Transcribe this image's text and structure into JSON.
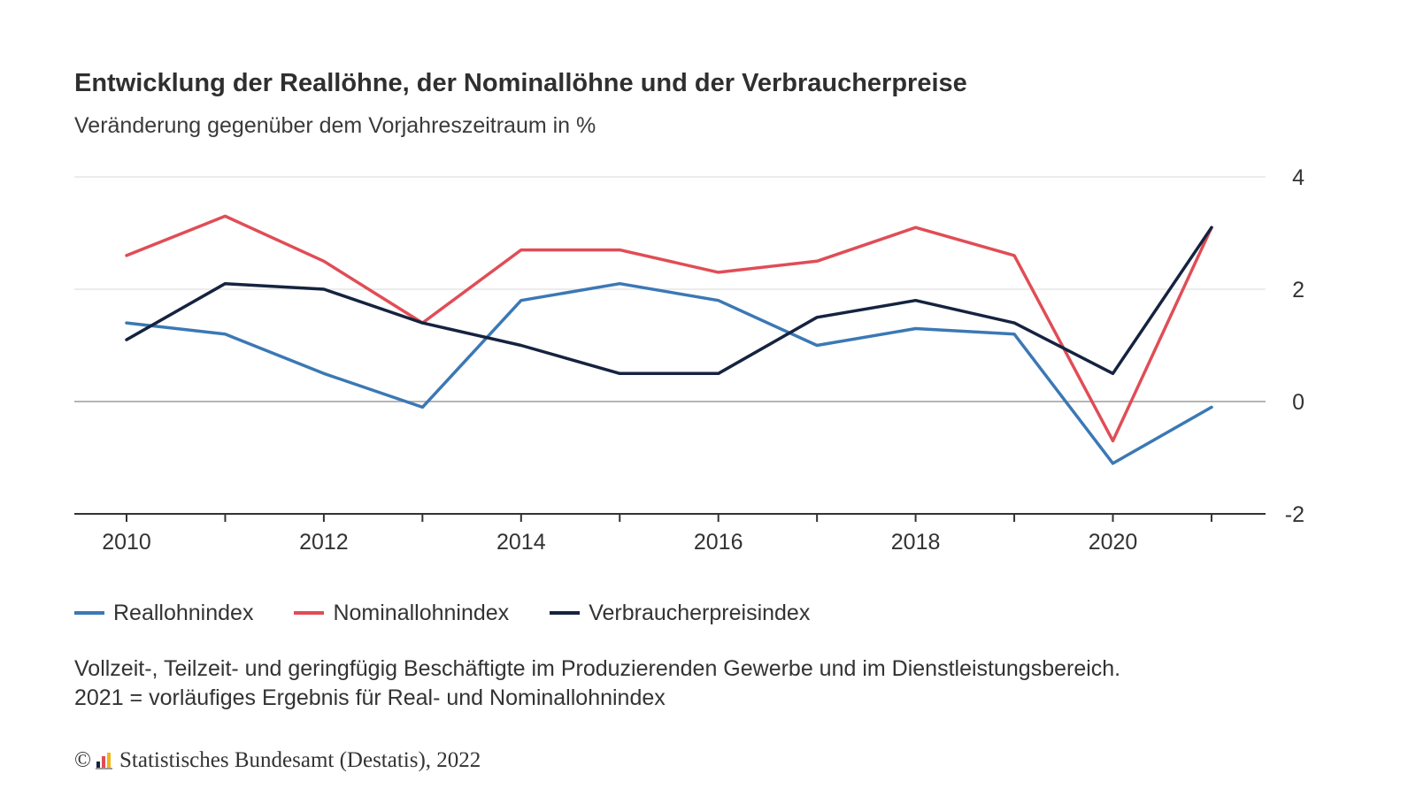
{
  "chart_data": {
    "type": "line",
    "title": "Entwicklung der Reallöhne, der Nominallöhne und der Verbraucherpreise",
    "subtitle": "Veränderung gegenüber dem Vorjahreszeitraum in %",
    "x": [
      2010,
      2011,
      2012,
      2013,
      2014,
      2015,
      2016,
      2017,
      2018,
      2019,
      2020,
      2021
    ],
    "x_tick_labels": [
      "2010",
      "2012",
      "2014",
      "2016",
      "2018",
      "2020"
    ],
    "y_tick_labels": [
      "4",
      "2",
      "0",
      "-2"
    ],
    "ylim": [
      -2,
      4
    ],
    "xlabel": "",
    "ylabel": "",
    "grid": true,
    "legend_position": "bottom-left",
    "series": [
      {
        "name": "Reallohnindex",
        "color": "#3b78b5",
        "values": [
          1.4,
          1.2,
          0.5,
          -0.1,
          1.8,
          2.1,
          1.8,
          1.0,
          1.3,
          1.2,
          -1.1,
          -0.1
        ]
      },
      {
        "name": "Nominallohnindex",
        "color": "#e04d56",
        "values": [
          2.6,
          3.3,
          2.5,
          1.4,
          2.7,
          2.7,
          2.3,
          2.5,
          3.1,
          2.6,
          -0.7,
          3.1
        ]
      },
      {
        "name": "Verbraucherpreisindex",
        "color": "#15233f",
        "values": [
          1.1,
          2.1,
          2.0,
          1.4,
          1.0,
          0.5,
          0.5,
          1.5,
          1.8,
          1.4,
          0.5,
          3.1
        ]
      }
    ]
  },
  "footnote": {
    "line1": "Vollzeit-, Teilzeit- und geringfügig Beschäftigte im Produzierenden Gewerbe und im Dienstleistungsbereich.",
    "line2": "2021 = vorläufiges Ergebnis für Real- und Nominallohnindex"
  },
  "source": {
    "copyright_symbol": "©",
    "text": "Statistisches Bundesamt (Destatis), 2022",
    "logo_icon": "destatis-logo-icon"
  }
}
